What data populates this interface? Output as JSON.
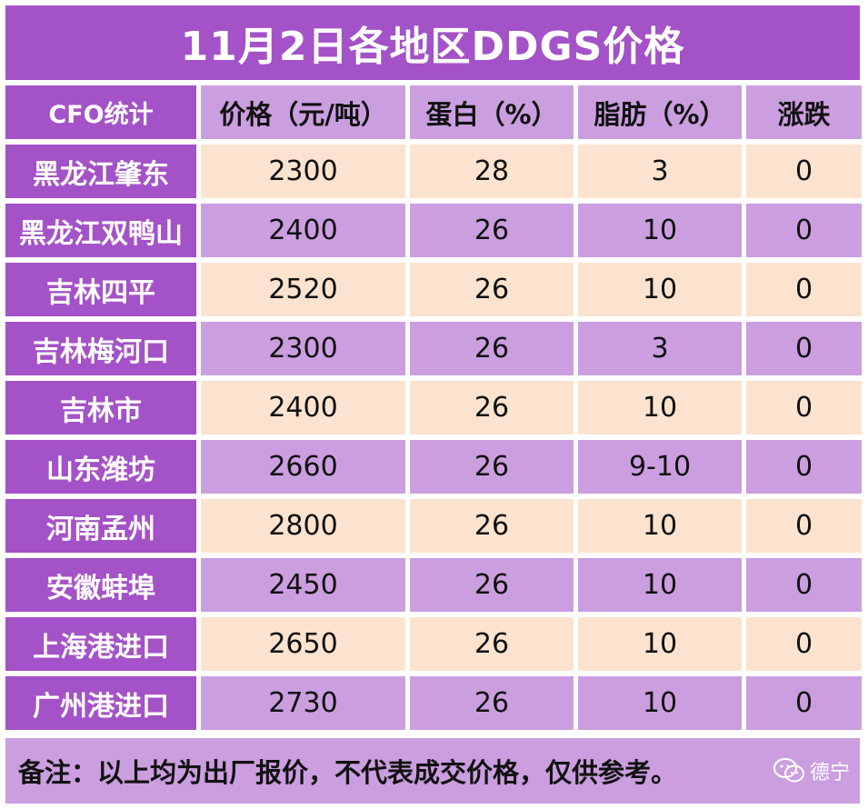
{
  "title": "11月2日各地区DDGS价格",
  "header": {
    "col0": "CFO统计",
    "col1": "价格（元/吨）",
    "col2": "蛋白（%）",
    "col3": "脂肪（%）",
    "col4": "涨跌"
  },
  "rows": [
    {
      "region": "黑龙江肇东",
      "price": "2300",
      "protein": "28",
      "fat": "3",
      "change": "0"
    },
    {
      "region": "黑龙江双鸭山",
      "price": "2400",
      "protein": "26",
      "fat": "10",
      "change": "0"
    },
    {
      "region": "吉林四平",
      "price": "2520",
      "protein": "26",
      "fat": "10",
      "change": "0"
    },
    {
      "region": "吉林梅河口",
      "price": "2300",
      "protein": "26",
      "fat": "3",
      "change": "0"
    },
    {
      "region": "吉林市",
      "price": "2400",
      "protein": "26",
      "fat": "10",
      "change": "0"
    },
    {
      "region": "山东潍坊",
      "price": "2660",
      "protein": "26",
      "fat": "9-10",
      "change": "0"
    },
    {
      "region": "河南孟州",
      "price": "2800",
      "protein": "26",
      "fat": "10",
      "change": "0"
    },
    {
      "region": "安徽蚌埠",
      "price": "2450",
      "protein": "26",
      "fat": "10",
      "change": "0"
    },
    {
      "region": "上海港进口",
      "price": "2650",
      "protein": "26",
      "fat": "10",
      "change": "0"
    },
    {
      "region": "广州港进口",
      "price": "2730",
      "protein": "26",
      "fat": "10",
      "change": "0"
    }
  ],
  "footer": "备注：以上均为出厂报价，不代表成交价格，仅供参考。",
  "watermark": {
    "icon": "wechat-icon",
    "text": "德宁"
  },
  "colors": {
    "accent_purple": "#a452c7",
    "light_purple": "#cb9ee0",
    "peach": "#fce3cf"
  }
}
